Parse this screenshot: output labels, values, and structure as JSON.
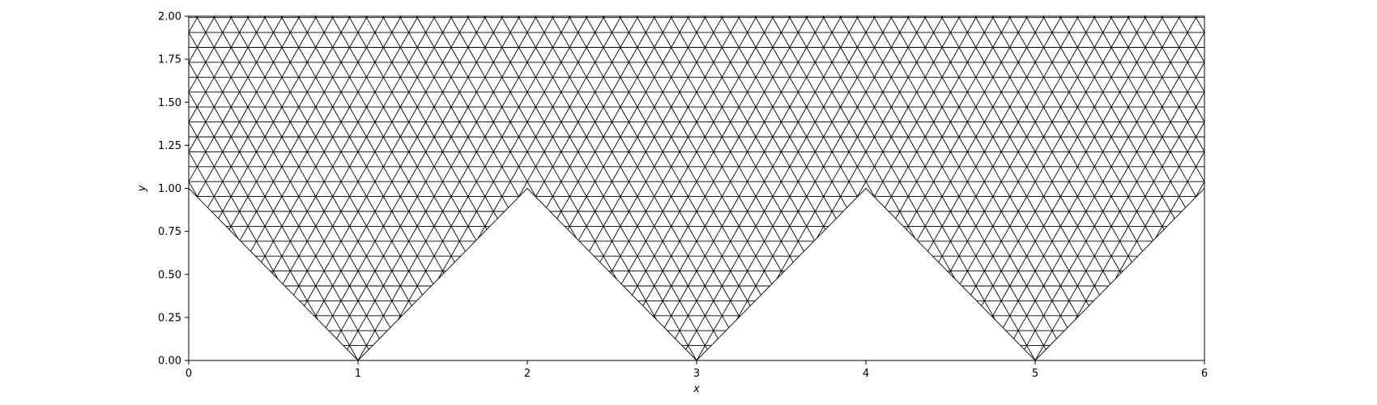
{
  "chart_data": {
    "type": "mesh",
    "title": "",
    "xlabel": "x",
    "ylabel": "y",
    "xlim": [
      0,
      6
    ],
    "ylim": [
      0,
      2
    ],
    "x_ticks": [
      0,
      1,
      2,
      3,
      4,
      5,
      6
    ],
    "x_tick_labels": [
      "0",
      "1",
      "2",
      "3",
      "4",
      "5",
      "6"
    ],
    "y_ticks": [
      0,
      0.25,
      0.5,
      0.75,
      1.0,
      1.25,
      1.5,
      1.75,
      2.0
    ],
    "y_tick_labels": [
      "0.00",
      "0.25",
      "0.50",
      "0.75",
      "1.00",
      "1.25",
      "1.50",
      "1.75",
      "2.00"
    ],
    "grid": false,
    "domain_boundary": [
      [
        0,
        2
      ],
      [
        0,
        1
      ],
      [
        1,
        0
      ],
      [
        2,
        1
      ],
      [
        3,
        0
      ],
      [
        4,
        1
      ],
      [
        5,
        0
      ],
      [
        6,
        1
      ],
      [
        6,
        2
      ]
    ],
    "mesh": {
      "element_type": "triangle",
      "target_edge_length": 0.1,
      "edge_color": "#000000",
      "face_color": "#ffffff"
    }
  }
}
